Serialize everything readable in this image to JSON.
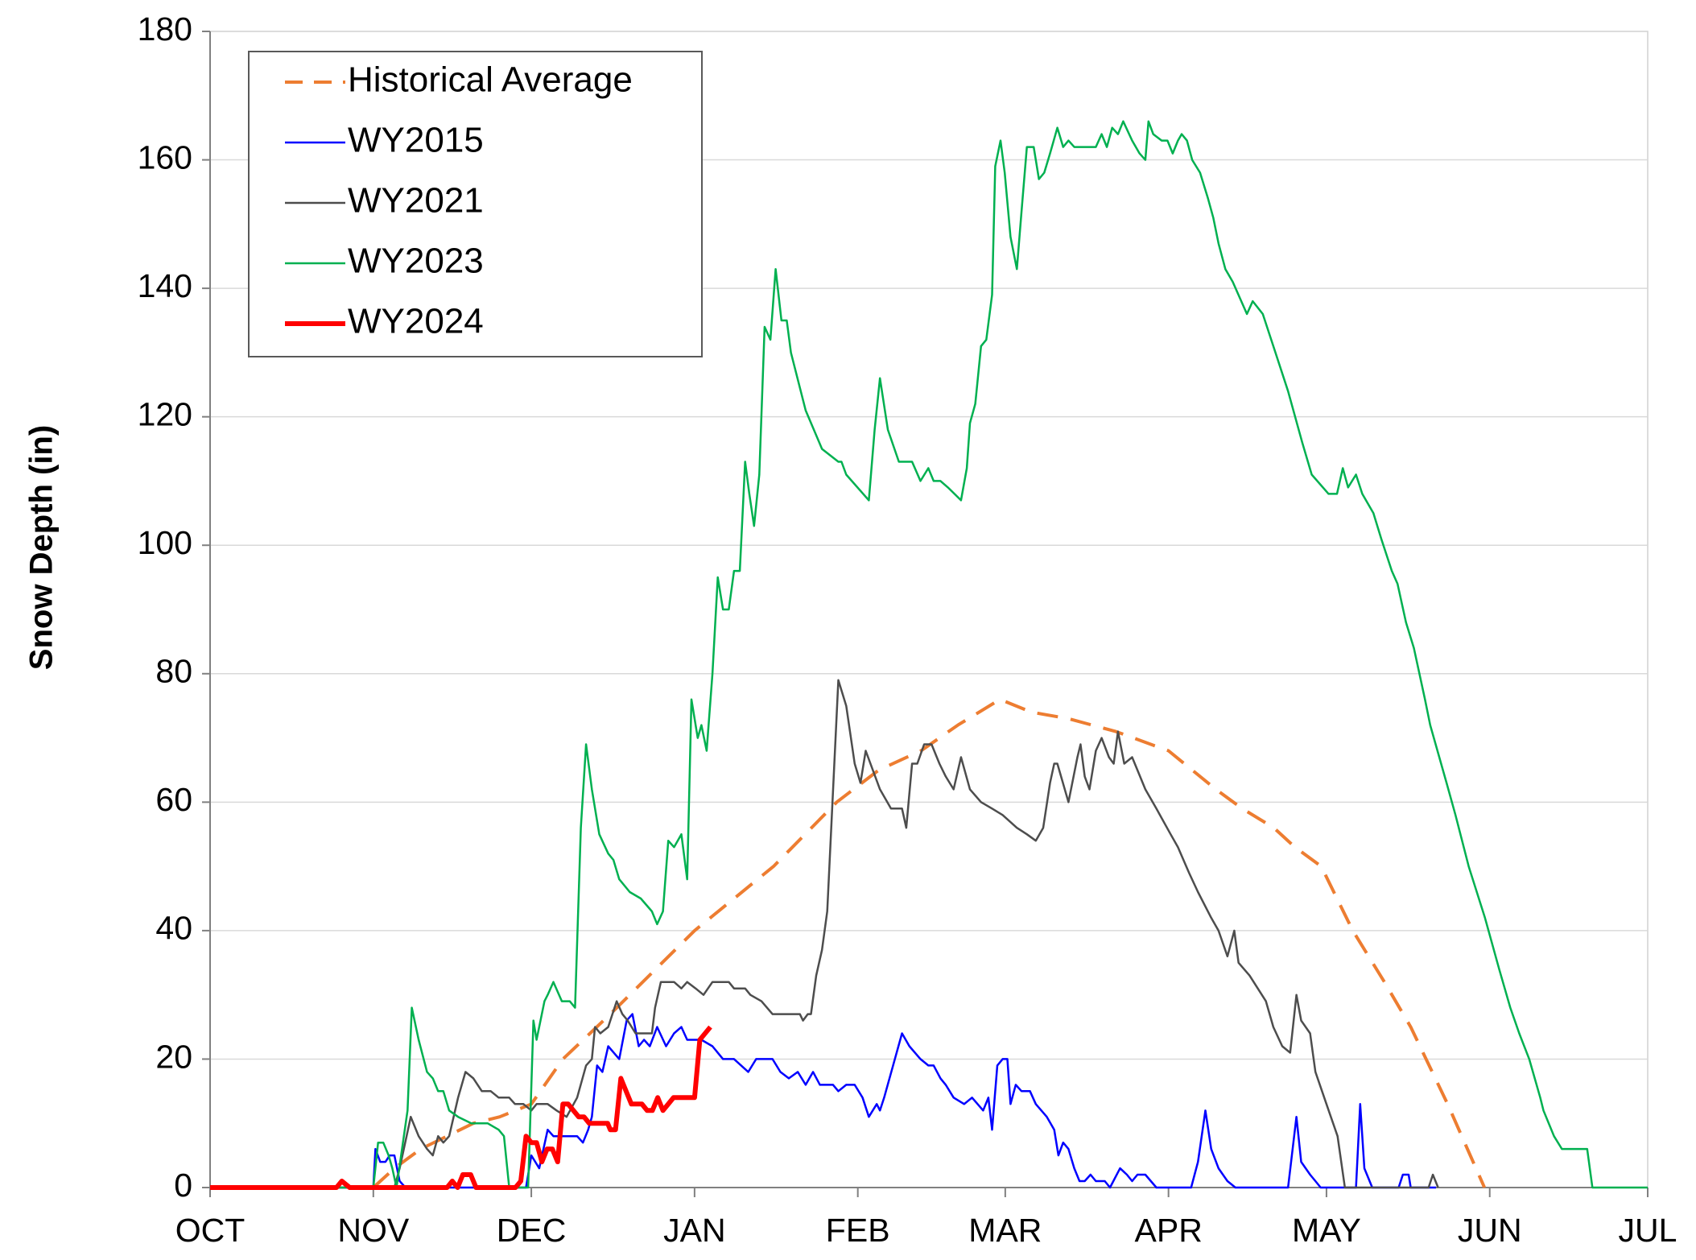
{
  "chart_data": {
    "type": "line",
    "y_label": "Snow Depth (in)",
    "xlim": [
      0,
      273
    ],
    "xticks": [
      {
        "value": 0,
        "label": "OCT"
      },
      {
        "value": 31,
        "label": "NOV"
      },
      {
        "value": 61,
        "label": "DEC"
      },
      {
        "value": 92,
        "label": "JAN"
      },
      {
        "value": 123,
        "label": "FEB"
      },
      {
        "value": 151,
        "label": "MAR"
      },
      {
        "value": 182,
        "label": "APR"
      },
      {
        "value": 212,
        "label": "MAY"
      },
      {
        "value": 243,
        "label": "JUN"
      },
      {
        "value": 273,
        "label": "JUL"
      }
    ],
    "ylim": [
      0,
      180
    ],
    "yticks": [
      0,
      20,
      40,
      60,
      80,
      100,
      120,
      140,
      160,
      180
    ],
    "grid": true,
    "legend": "upper left",
    "series": [
      {
        "name": "Historical Average",
        "color": "#ed7d31",
        "dash": "dashed",
        "width": 4,
        "x": [
          31,
          35,
          40,
          45,
          50,
          55,
          61,
          67,
          76,
          92,
          107,
          119,
          127,
          135,
          142,
          150,
          156,
          163,
          172,
          182,
          191,
          196,
          202,
          206,
          211,
          217,
          223,
          228,
          235,
          242
        ],
        "values": [
          0,
          3,
          6,
          8,
          10,
          11,
          13,
          20,
          27,
          40,
          50,
          60,
          65,
          68,
          72,
          76,
          74,
          73,
          71,
          68,
          62,
          59,
          56,
          53,
          50,
          40,
          32,
          25,
          13,
          0
        ]
      },
      {
        "name": "WY2015",
        "color": "#0000ff",
        "dash": "solid",
        "width": 2.5,
        "x": [
          0,
          31,
          31.4,
          32.3,
          33.3,
          34.1,
          35.0,
          36.0,
          37.1,
          60.0,
          61.0,
          62.5,
          64.1,
          65.2,
          69.7,
          70.8,
          71.8,
          72.5,
          73.5,
          74.5,
          75.6,
          77.7,
          79.1,
          80.2,
          81.4,
          82.4,
          83.5,
          84.9,
          86.6,
          88.1,
          89.5,
          90.6,
          93.3,
          95.4,
          97.4,
          99.5,
          102.2,
          103.7,
          106.8,
          108.3,
          109.9,
          111.6,
          113.1,
          114.5,
          115.8,
          118.3,
          119.3,
          120.8,
          122.4,
          123.9,
          125.1,
          126.6,
          127.2,
          128.0,
          129.7,
          131.4,
          132.8,
          134.9,
          136.4,
          137.4,
          138.7,
          139.7,
          141.2,
          143.2,
          144.7,
          146.8,
          147.8,
          148.5,
          149.5,
          150.5,
          151.4,
          152.0,
          153.0,
          154.1,
          155.7,
          156.8,
          158.9,
          160.3,
          161.1,
          162.0,
          163.0,
          164.1,
          165.1,
          166.1,
          167.2,
          168.2,
          169.9,
          170.9,
          172.8,
          174.1,
          175.1,
          176.1,
          177.6,
          179.7,
          186.3,
          187.6,
          189.0,
          190.1,
          191.5,
          193.2,
          194.7,
          204.7,
          206.3,
          207.2,
          208.9,
          209.9,
          210.9,
          217.6,
          218.4,
          219.2,
          220.7,
          225.7,
          226.5,
          227.6,
          228.0,
          232.8
        ],
        "values": [
          0,
          0,
          6,
          4,
          4,
          5,
          5,
          1,
          0,
          0,
          5,
          3,
          9,
          8,
          8,
          7,
          9,
          11,
          19,
          18,
          22,
          20,
          26,
          27,
          22,
          23,
          22,
          25,
          22,
          24,
          25,
          23,
          23,
          22,
          20,
          20,
          18,
          20,
          20,
          18,
          17,
          18,
          16,
          18,
          16,
          16,
          15,
          16,
          16,
          14,
          11,
          13,
          12,
          14,
          19,
          24,
          22,
          20,
          19,
          19,
          17,
          16,
          14,
          13,
          14,
          12,
          14,
          9,
          19,
          20,
          20,
          13,
          16,
          15,
          15,
          13,
          11,
          9,
          5,
          7,
          6,
          3,
          1,
          1,
          2,
          1,
          1,
          0,
          3,
          2,
          1,
          2,
          2,
          0,
          0,
          4,
          12,
          6,
          3,
          1,
          0,
          0,
          11,
          4,
          2,
          1,
          0,
          0,
          13,
          3,
          0,
          0,
          2,
          2,
          0,
          0
        ]
      },
      {
        "name": "WY2021",
        "color": "#4d4d4d",
        "dash": "solid",
        "width": 2.5,
        "x": [
          0,
          35.0,
          36.0,
          38.1,
          39.6,
          41.2,
          42.3,
          43.3,
          44.3,
          45.4,
          47.1,
          48.5,
          50.0,
          51.6,
          53.3,
          54.8,
          56.8,
          57.9,
          59.5,
          61.0,
          62.0,
          64.1,
          65.8,
          67.7,
          69.7,
          71.4,
          72.5,
          73.1,
          74.1,
          75.6,
          77.2,
          78.3,
          79.3,
          80.8,
          82.9,
          83.9,
          84.5,
          85.6,
          88.1,
          89.5,
          90.6,
          92.2,
          93.7,
          95.4,
          98.5,
          99.5,
          101.6,
          102.6,
          104.7,
          106.8,
          112.0,
          112.6,
          113.5,
          114.1,
          115.1,
          116.2,
          117.2,
          119.3,
          120.8,
          122.4,
          123.5,
          124.5,
          127.2,
          129.3,
          131.4,
          132.2,
          133.3,
          134.3,
          135.6,
          137.0,
          138.5,
          139.7,
          141.2,
          142.6,
          144.3,
          146.4,
          148.5,
          150.5,
          153.2,
          155.1,
          156.8,
          158.2,
          159.5,
          160.3,
          160.9,
          163.0,
          164.7,
          165.3,
          166.1,
          167.0,
          168.2,
          169.3,
          170.7,
          171.6,
          172.4,
          173.6,
          175.1,
          177.6,
          179.7,
          182.4,
          183.8,
          185.9,
          187.6,
          190.1,
          191.5,
          193.2,
          194.5,
          195.3,
          197.4,
          200.5,
          201.9,
          203.6,
          205.1,
          206.3,
          207.2,
          208.9,
          209.9,
          212.0,
          214.1,
          215.5,
          231.4,
          232.2,
          233.2
        ],
        "values": [
          0,
          0,
          3,
          11,
          8,
          6,
          5,
          8,
          7,
          8,
          14,
          18,
          17,
          15,
          15,
          14,
          14,
          13,
          13,
          12,
          13,
          13,
          12,
          11,
          14,
          19,
          20,
          25,
          24,
          25,
          29,
          27,
          26,
          24,
          24,
          24,
          28,
          32,
          32,
          31,
          32,
          31,
          30,
          32,
          32,
          31,
          31,
          30,
          29,
          27,
          27,
          26,
          27,
          27,
          33,
          37,
          43,
          79,
          75,
          66,
          63,
          68,
          62,
          59,
          59,
          56,
          66,
          66,
          69,
          69,
          66,
          64,
          62,
          67,
          62,
          60,
          59,
          58,
          56,
          55,
          54,
          56,
          63,
          66,
          66,
          60,
          67,
          69,
          64,
          62,
          68,
          70,
          67,
          66,
          71,
          66,
          67,
          62,
          59,
          55,
          53,
          49,
          46,
          42,
          40,
          36,
          40,
          35,
          33,
          29,
          25,
          22,
          21,
          30,
          26,
          24,
          18,
          13,
          8,
          0,
          0,
          2,
          0
        ]
      },
      {
        "name": "WY2023",
        "color": "#00b050",
        "dash": "solid",
        "width": 2.5,
        "x": [
          0,
          31,
          31.9,
          32.9,
          33.9,
          34.6,
          35.4,
          37.5,
          38.3,
          39.6,
          41.2,
          42.3,
          43.3,
          44.3,
          45.4,
          47.1,
          49.6,
          52.7,
          54.8,
          55.8,
          56.8,
          60.4,
          61.4,
          62.0,
          63.5,
          64.1,
          65.2,
          66.8,
          68.3,
          69.3,
          70.4,
          71.4,
          72.5,
          73.9,
          75.6,
          76.6,
          77.7,
          79.7,
          81.8,
          83.9,
          84.9,
          86.0,
          87.0,
          88.1,
          89.5,
          90.6,
          91.4,
          92.6,
          93.3,
          94.3,
          95.4,
          96.4,
          97.4,
          98.5,
          99.5,
          100.6,
          101.6,
          102.4,
          103.3,
          104.3,
          105.3,
          106.4,
          107.4,
          108.5,
          109.5,
          110.3,
          113.1,
          116.2,
          119.3,
          119.9,
          120.8,
          125.1,
          126.2,
          127.2,
          128.7,
          130.8,
          133.3,
          134.9,
          136.4,
          137.4,
          138.7,
          140.1,
          142.6,
          143.7,
          144.3,
          145.3,
          146.4,
          147.4,
          148.5,
          149.1,
          150.1,
          150.9,
          152.0,
          153.2,
          154.1,
          155.1,
          156.4,
          157.4,
          158.4,
          159.5,
          160.9,
          162.0,
          163.0,
          164.1,
          168.2,
          169.3,
          170.3,
          171.3,
          172.4,
          173.4,
          175.1,
          176.5,
          177.6,
          178.2,
          179.1,
          180.7,
          181.8,
          182.8,
          183.8,
          184.5,
          185.5,
          186.5,
          188.0,
          189.5,
          190.5,
          191.5,
          192.8,
          194.2,
          196.9,
          198.0,
          199.9,
          201.9,
          204.7,
          207.4,
          209.2,
          212.4,
          214.0,
          215.1,
          216.1,
          217.6,
          218.8,
          220.9,
          222.4,
          224.4,
          225.5,
          227.1,
          228.6,
          230.7,
          231.7,
          234.8,
          236.5,
          239.0,
          242.1,
          244.8,
          246.9,
          248.6,
          250.5,
          252.6,
          253.2,
          255.2,
          256.7,
          261.5,
          262.5,
          273
        ],
        "values": [
          0,
          0,
          7,
          7,
          5,
          3,
          0,
          12,
          28,
          23,
          18,
          17,
          15,
          15,
          12,
          11,
          10,
          10,
          9,
          8,
          0,
          0,
          26,
          23,
          29,
          30,
          32,
          29,
          29,
          28,
          56,
          69,
          62,
          55,
          52,
          51,
          48,
          46,
          45,
          43,
          41,
          43,
          54,
          53,
          55,
          48,
          76,
          70,
          72,
          68,
          80,
          95,
          90,
          90,
          96,
          96,
          113,
          108,
          103,
          111,
          134,
          132,
          143,
          135,
          135,
          130,
          121,
          115,
          113,
          113,
          111,
          107,
          118,
          126,
          118,
          113,
          113,
          110,
          112,
          110,
          110,
          109,
          107,
          112,
          119,
          122,
          131,
          132,
          139,
          159,
          163,
          158,
          148,
          143,
          152,
          162,
          162,
          157,
          158,
          161,
          165,
          162,
          163,
          162,
          162,
          164,
          162,
          165,
          164,
          166,
          163,
          161,
          160,
          166,
          164,
          163,
          163,
          161,
          163,
          164,
          163,
          160,
          158,
          154,
          151,
          147,
          143,
          141,
          136,
          138,
          136,
          131,
          124,
          116,
          111,
          108,
          108,
          112,
          109,
          111,
          108,
          105,
          101,
          96,
          94,
          88,
          84,
          76,
          72,
          63,
          58,
          50,
          42,
          34,
          28,
          24,
          20,
          14,
          12,
          8,
          6,
          6,
          0,
          0
        ]
      },
      {
        "name": "WY2024",
        "color": "#ff0000",
        "dash": "solid",
        "width": 6,
        "x": [
          0,
          24,
          25,
          26.5,
          45,
          46,
          47,
          48,
          49.5,
          50.5,
          58,
          59,
          60,
          61,
          62,
          63,
          64,
          65,
          66,
          67,
          68,
          69,
          70,
          71,
          72,
          75.5,
          76,
          77,
          78,
          79,
          80,
          82,
          83,
          84,
          85,
          86,
          87,
          88,
          92,
          93,
          94,
          95
        ],
        "values": [
          0,
          0,
          1,
          0,
          0,
          1,
          0,
          2,
          2,
          0,
          0,
          1,
          8,
          7,
          7,
          4,
          6,
          6,
          4,
          13,
          13,
          12,
          11,
          11,
          10,
          10,
          9,
          9,
          17,
          15,
          13,
          13,
          12,
          12,
          14,
          12,
          13,
          14,
          14,
          23,
          24,
          25
        ]
      }
    ]
  }
}
